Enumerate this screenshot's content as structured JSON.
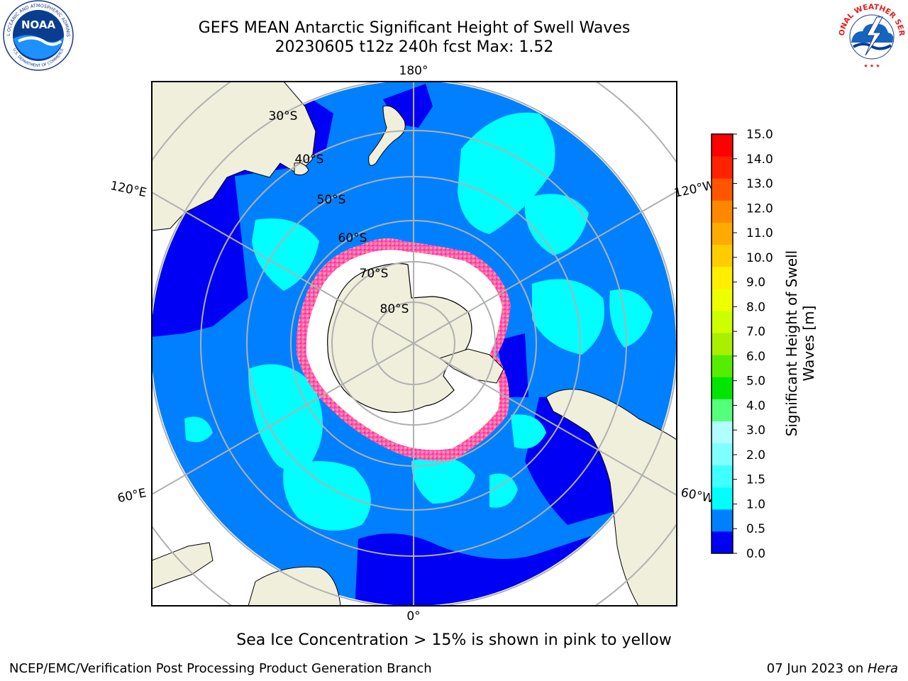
{
  "header": {
    "title": "GEFS MEAN Antarctic Significant Height of Swell Waves",
    "subtitle": "20230605 t12z 240h fcst   Max: 1.52"
  },
  "map": {
    "projection": "south-polar-stereographic",
    "longitude_labels": {
      "top": "180°",
      "bottom": "0°",
      "left_upper": "120°E",
      "left_lower": "60°E",
      "right_upper": "120°W",
      "right_lower": "60°W"
    },
    "latitude_labels": [
      "30°S",
      "40°S",
      "50°S",
      "60°S",
      "70°S",
      "80°S"
    ],
    "land_color": "#efefdc",
    "ocean_outside_color": "#ffffff"
  },
  "colorbar": {
    "title_line1": "Significant Height of Swell",
    "title_line2": "Waves [m]",
    "ticks": [
      "0.0",
      "0.5",
      "1.0",
      "1.5",
      "2.0",
      "3.0",
      "4.0",
      "5.0",
      "6.0",
      "7.0",
      "8.0",
      "9.0",
      "10.0",
      "11.0",
      "12.0",
      "13.0",
      "14.0",
      "15.0"
    ],
    "colors": [
      "#0000f5",
      "#0080ff",
      "#00ffff",
      "#40ffff",
      "#80ffff",
      "#b0ffff",
      "#55ff7a",
      "#00e600",
      "#55ee00",
      "#aaee00",
      "#ccff00",
      "#eeff00",
      "#ffee00",
      "#ffcc00",
      "#ffaa00",
      "#ff8800",
      "#ff5500",
      "#ff2200",
      "#ff0000"
    ]
  },
  "note": "Sea Ice Concentration > 15% is shown in pink to yellow",
  "footer": {
    "left": "NCEP/EMC/Verification Post Processing Product Generation Branch",
    "right_prefix": "07 Jun 2023 on ",
    "right_italic": "Hera"
  },
  "logos": {
    "noaa_text": "NOAA",
    "noaa_ring": "NATIONAL OCEANIC AND ATMOSPHERIC ADMINISTRATION",
    "noaa_ring_bottom": "U.S. DEPARTMENT OF COMMERCE",
    "nws_ring": "NATIONAL WEATHER SERVICE"
  }
}
